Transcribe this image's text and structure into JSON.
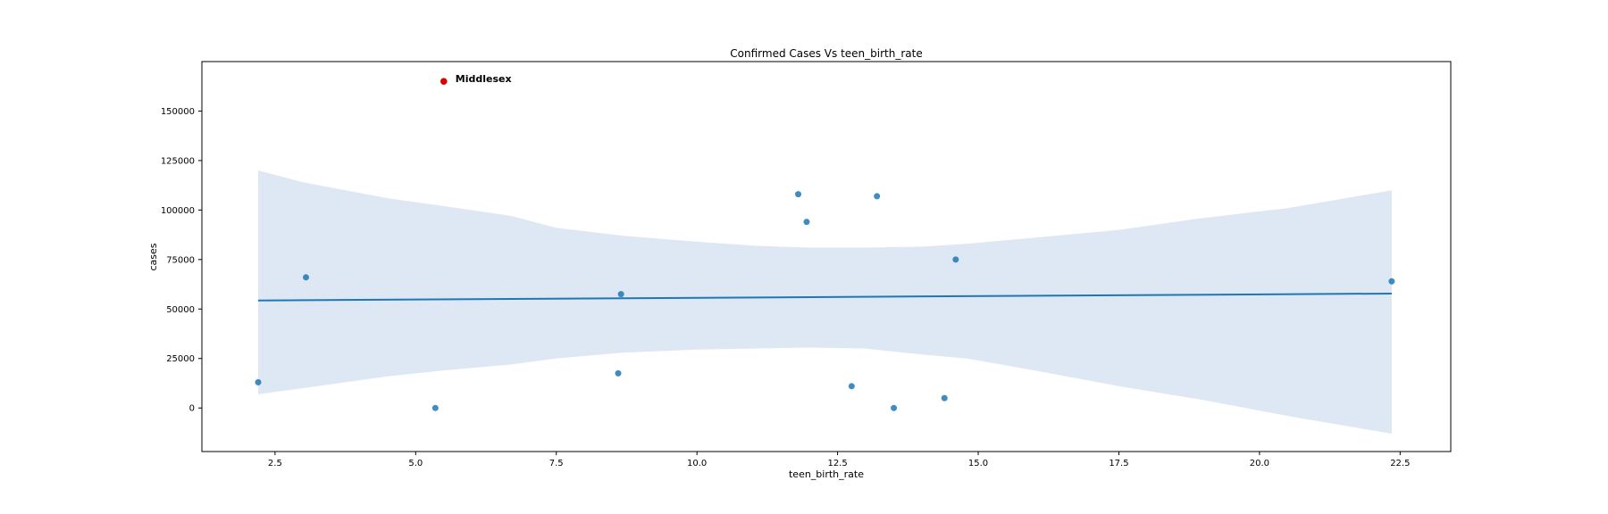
{
  "chart_data": {
    "type": "scatter",
    "title": "Confirmed Cases Vs teen_birth_rate",
    "xlabel": "teen_birth_rate",
    "ylabel": "cases",
    "xlim": [
      1.2,
      23.4
    ],
    "ylim": [
      -22000,
      175000
    ],
    "xticks": [
      2.5,
      5.0,
      7.5,
      10.0,
      12.5,
      15.0,
      17.5,
      20.0,
      22.5
    ],
    "xtick_labels": [
      "2.5",
      "5.0",
      "7.5",
      "10.0",
      "12.5",
      "15.0",
      "17.5",
      "20.0",
      "22.5"
    ],
    "yticks": [
      0,
      25000,
      50000,
      75000,
      100000,
      125000,
      150000
    ],
    "ytick_labels": [
      "0",
      "25000",
      "50000",
      "75000",
      "100000",
      "125000",
      "150000"
    ],
    "grid": false,
    "point_color": "#1f77b4",
    "line_color": "#1f77b4",
    "band_color": "#c6d9ec",
    "highlight_color": "#dd0000",
    "points": [
      {
        "x": 2.2,
        "y": 13000
      },
      {
        "x": 3.05,
        "y": 66000
      },
      {
        "x": 5.35,
        "y": 0
      },
      {
        "x": 8.6,
        "y": 17500
      },
      {
        "x": 8.65,
        "y": 57500
      },
      {
        "x": 11.8,
        "y": 108000
      },
      {
        "x": 11.95,
        "y": 94000
      },
      {
        "x": 12.75,
        "y": 11000
      },
      {
        "x": 13.2,
        "y": 107000
      },
      {
        "x": 13.5,
        "y": 0
      },
      {
        "x": 14.4,
        "y": 5000
      },
      {
        "x": 14.6,
        "y": 75000
      },
      {
        "x": 22.35,
        "y": 64000
      }
    ],
    "highlight": {
      "x": 5.5,
      "y": 165000,
      "label": "Middlesex"
    },
    "regression": {
      "x": [
        2.2,
        22.35
      ],
      "y": [
        54300,
        57800
      ]
    },
    "confidence_band": {
      "x": [
        2.2,
        3.0,
        4.5,
        5.5,
        6.7,
        7.5,
        8.7,
        10.0,
        11.0,
        12.0,
        13.0,
        14.0,
        14.8,
        16.0,
        17.5,
        19.0,
        20.5,
        22.35
      ],
      "upper": [
        120000,
        114000,
        106000,
        102000,
        97000,
        91000,
        87000,
        84000,
        82000,
        81000,
        81000,
        81500,
        83000,
        86000,
        90000,
        96000,
        101000,
        110000
      ],
      "lower": [
        7000,
        10000,
        16000,
        19000,
        22000,
        25000,
        28000,
        29500,
        30000,
        30500,
        30000,
        27000,
        25000,
        19000,
        11000,
        4000,
        -4000,
        -13000
      ]
    }
  }
}
